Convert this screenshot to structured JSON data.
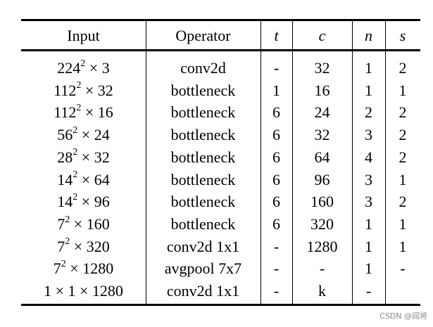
{
  "table": {
    "header": [
      "Input",
      "Operator",
      "t",
      "c",
      "n",
      "s"
    ],
    "rows": [
      [
        {
          "base": "224",
          "sup": "2",
          "tail": " × 3"
        },
        "conv2d",
        "-",
        "32",
        "1",
        "2"
      ],
      [
        {
          "base": "112",
          "sup": "2",
          "tail": " × 32"
        },
        "bottleneck",
        "1",
        "16",
        "1",
        "1"
      ],
      [
        {
          "base": "112",
          "sup": "2",
          "tail": " × 16"
        },
        "bottleneck",
        "6",
        "24",
        "2",
        "2"
      ],
      [
        {
          "base": "56",
          "sup": "2",
          "tail": " × 24"
        },
        "bottleneck",
        "6",
        "32",
        "3",
        "2"
      ],
      [
        {
          "base": "28",
          "sup": "2",
          "tail": " × 32"
        },
        "bottleneck",
        "6",
        "64",
        "4",
        "2"
      ],
      [
        {
          "base": "14",
          "sup": "2",
          "tail": " × 64"
        },
        "bottleneck",
        "6",
        "96",
        "3",
        "1"
      ],
      [
        {
          "base": "14",
          "sup": "2",
          "tail": " × 96"
        },
        "bottleneck",
        "6",
        "160",
        "3",
        "2"
      ],
      [
        {
          "base": "7",
          "sup": "2",
          "tail": " × 160"
        },
        "bottleneck",
        "6",
        "320",
        "1",
        "1"
      ],
      [
        {
          "base": "7",
          "sup": "2",
          "tail": " × 320"
        },
        "conv2d 1x1",
        "-",
        "1280",
        "1",
        "1"
      ],
      [
        {
          "base": "7",
          "sup": "2",
          "tail": " × 1280"
        },
        "avgpool 7x7",
        "-",
        "-",
        "1",
        "-"
      ],
      [
        "1 × 1 × 1280",
        "conv2d 1x1",
        "-",
        "k",
        "-"
      ]
    ]
  },
  "watermark": "CSDN @阎将"
}
